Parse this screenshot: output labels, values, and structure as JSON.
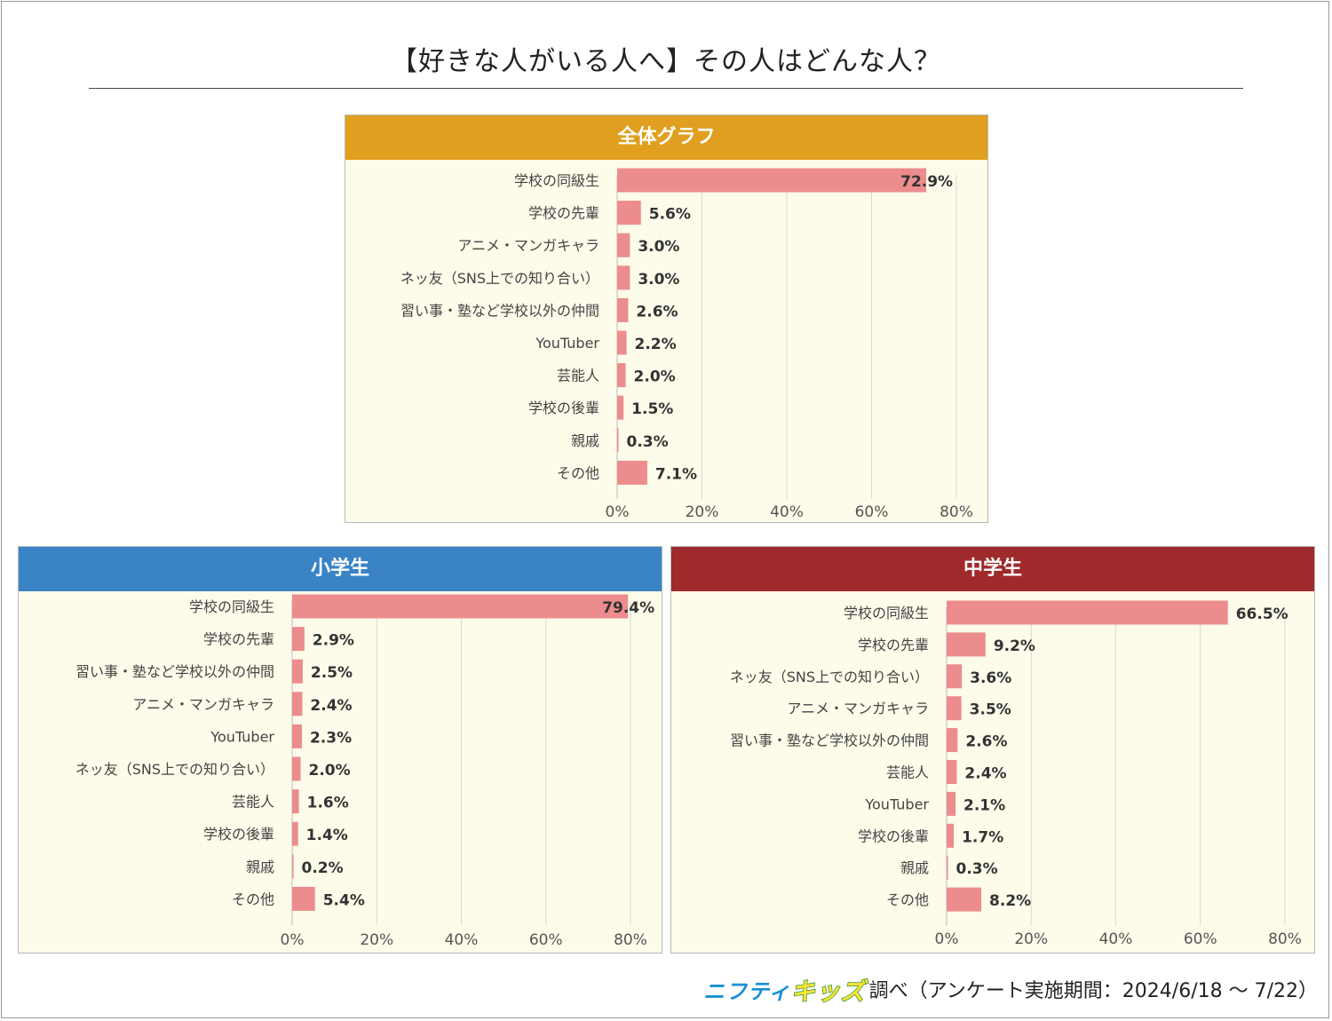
{
  "title": "【好きな人がいる人へ】その人はどんな人？",
  "footer": {
    "logo_nifty": "ニフティ",
    "logo_kids": "キッズ",
    "note": "調べ（アンケート実施期間：2024/6/18 ～ 7/22）"
  },
  "colors": {
    "overall_header": "#e09f1e",
    "elementary_header": "#3a83c5",
    "junior_header": "#9e2a2b",
    "bar": "#ec8c8d",
    "panel_bg": "#fdfbea",
    "grid": "#d7d7d7"
  },
  "panels": {
    "overall": {
      "title": "全体グラフ"
    },
    "elementary": {
      "title": "小学生"
    },
    "junior": {
      "title": "中学生"
    }
  },
  "chart_data": [
    {
      "type": "bar",
      "orientation": "horizontal",
      "title": "全体グラフ",
      "categories": [
        "学校の同級生",
        "学校の先輩",
        "アニメ・マンガキャラ",
        "ネッ友（SNS上での知り合い）",
        "習い事・塾など学校以外の仲間",
        "YouTuber",
        "芸能人",
        "学校の後輩",
        "親戚",
        "その他"
      ],
      "values": [
        72.9,
        5.6,
        3.0,
        3.0,
        2.6,
        2.2,
        2.0,
        1.5,
        0.3,
        7.1
      ],
      "value_labels": [
        "72.9%",
        "5.6%",
        "3.0%",
        "3.0%",
        "2.6%",
        "2.2%",
        "2.0%",
        "1.5%",
        "0.3%",
        "7.1%"
      ],
      "xlim": [
        0,
        80
      ],
      "xticks": [
        "0%",
        "20%",
        "40%",
        "60%",
        "80%"
      ],
      "grid": true
    },
    {
      "type": "bar",
      "orientation": "horizontal",
      "title": "小学生",
      "categories": [
        "学校の同級生",
        "学校の先輩",
        "習い事・塾など学校以外の仲間",
        "アニメ・マンガキャラ",
        "YouTuber",
        "ネッ友（SNS上での知り合い）",
        "芸能人",
        "学校の後輩",
        "親戚",
        "その他"
      ],
      "values": [
        79.4,
        2.9,
        2.5,
        2.4,
        2.3,
        2.0,
        1.6,
        1.4,
        0.2,
        5.4
      ],
      "value_labels": [
        "79.4%",
        "2.9%",
        "2.5%",
        "2.4%",
        "2.3%",
        "2.0%",
        "1.6%",
        "1.4%",
        "0.2%",
        "5.4%"
      ],
      "xlim": [
        0,
        80
      ],
      "xticks": [
        "0%",
        "20%",
        "40%",
        "60%",
        "80%"
      ],
      "grid": true
    },
    {
      "type": "bar",
      "orientation": "horizontal",
      "title": "中学生",
      "categories": [
        "学校の同級生",
        "学校の先輩",
        "ネッ友（SNS上での知り合い）",
        "アニメ・マンガキャラ",
        "習い事・塾など学校以外の仲間",
        "芸能人",
        "YouTuber",
        "学校の後輩",
        "親戚",
        "その他"
      ],
      "values": [
        66.5,
        9.2,
        3.6,
        3.5,
        2.6,
        2.4,
        2.1,
        1.7,
        0.3,
        8.2
      ],
      "value_labels": [
        "66.5%",
        "9.2%",
        "3.6%",
        "3.5%",
        "2.6%",
        "2.4%",
        "2.1%",
        "1.7%",
        "0.3%",
        "8.2%"
      ],
      "xlim": [
        0,
        80
      ],
      "xticks": [
        "0%",
        "20%",
        "40%",
        "60%",
        "80%"
      ],
      "grid": true
    }
  ]
}
